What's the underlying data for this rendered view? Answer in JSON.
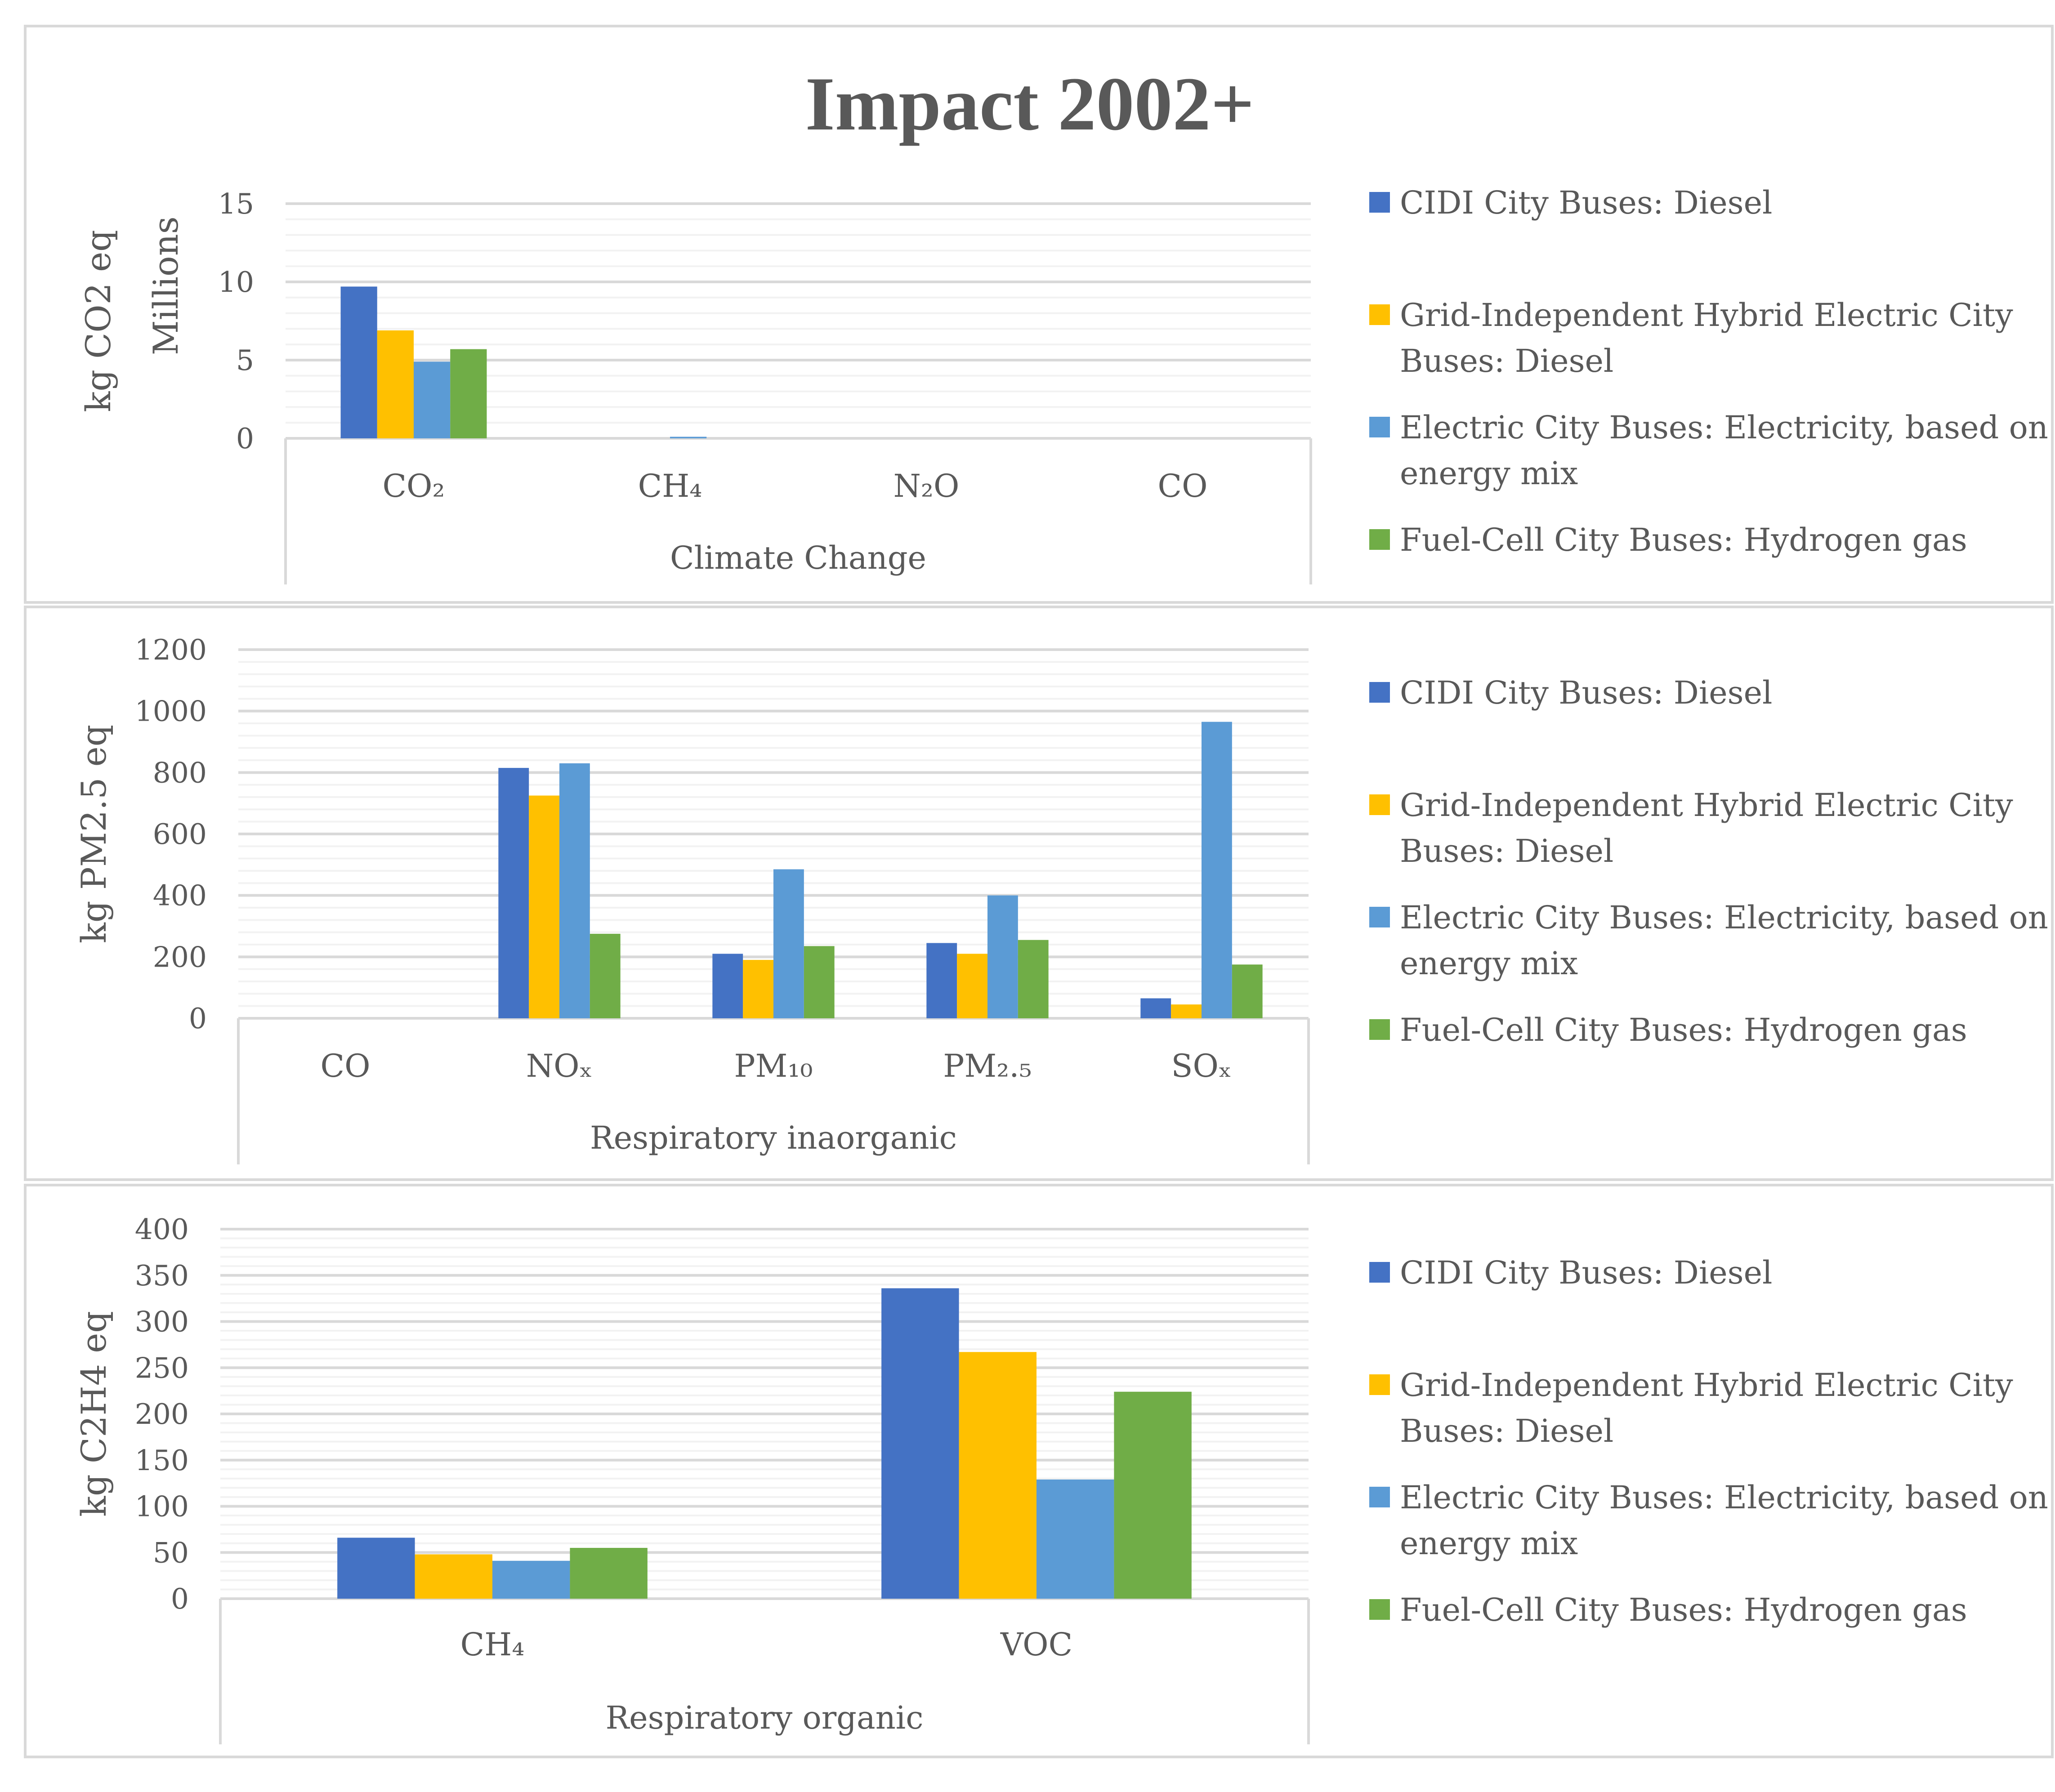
{
  "chart_data": {
    "title": "Impact 2002+",
    "type": "bar",
    "series_names": [
      "CIDI City Buses: Diesel",
      "Grid-Independent Hybrid Electric City Buses: Diesel",
      "Electric City Buses: Electricity, based on energy mix",
      "Fuel-Cell City Buses: Hydrogen gas"
    ],
    "series_colors": [
      "#4472C4",
      "#FFC000",
      "#5B9BD5",
      "#70AD47"
    ],
    "panels": [
      {
        "group_label": "Climate Change",
        "ylabel": "kg CO2 eq",
        "unit_label": "Millions",
        "ylim": [
          0,
          15
        ],
        "yticks": [
          "0",
          "5",
          "10",
          "15"
        ],
        "categories": [
          "CO₂",
          "CH₄",
          "N₂O",
          "CO"
        ],
        "series": [
          {
            "name": "CIDI City Buses: Diesel",
            "values": [
              9.7,
              0.0,
              0.0,
              0.0
            ]
          },
          {
            "name": "Grid-Independent Hybrid Electric City Buses: Diesel",
            "values": [
              6.9,
              0.0,
              0.0,
              0.0
            ]
          },
          {
            "name": "Electric City Buses: Electricity, based on energy mix",
            "values": [
              4.9,
              0.1,
              0.0,
              0.0
            ]
          },
          {
            "name": "Fuel-Cell City Buses: Hydrogen gas",
            "values": [
              5.7,
              0.0,
              0.0,
              0.0
            ]
          }
        ]
      },
      {
        "group_label": "Respiratory inaorganic",
        "ylabel": "kg PM2.5 eq",
        "ylim": [
          0,
          1200
        ],
        "yticks": [
          "0",
          "200",
          "400",
          "600",
          "800",
          "1000",
          "1200"
        ],
        "categories": [
          "CO",
          "NOₓ",
          "PM₁₀",
          "PM₂.₅",
          "SOₓ"
        ],
        "series": [
          {
            "name": "CIDI City Buses: Diesel",
            "values": [
              0,
              815,
              210,
              245,
              65
            ]
          },
          {
            "name": "Grid-Independent Hybrid Electric City Buses: Diesel",
            "values": [
              0,
              725,
              190,
              210,
              45
            ]
          },
          {
            "name": "Electric City Buses: Electricity, based on energy mix",
            "values": [
              0,
              830,
              485,
              400,
              965
            ]
          },
          {
            "name": "Fuel-Cell City Buses: Hydrogen gas",
            "values": [
              0,
              275,
              235,
              255,
              175
            ]
          }
        ]
      },
      {
        "group_label": "Respiratory organic",
        "ylabel": "kg C2H4 eq",
        "ylim": [
          0,
          400
        ],
        "yticks": [
          "0",
          "50",
          "100",
          "150",
          "200",
          "250",
          "300",
          "350",
          "400"
        ],
        "categories": [
          "CH₄",
          "VOC"
        ],
        "series": [
          {
            "name": "CIDI City Buses: Diesel",
            "values": [
              66,
              336
            ]
          },
          {
            "name": "Grid-Independent Hybrid Electric City Buses: Diesel",
            "values": [
              48,
              267
            ]
          },
          {
            "name": "Electric City Buses: Electricity, based on energy mix",
            "values": [
              41,
              129
            ]
          },
          {
            "name": "Fuel-Cell City Buses: Hydrogen gas",
            "values": [
              55,
              224
            ]
          }
        ]
      }
    ]
  }
}
